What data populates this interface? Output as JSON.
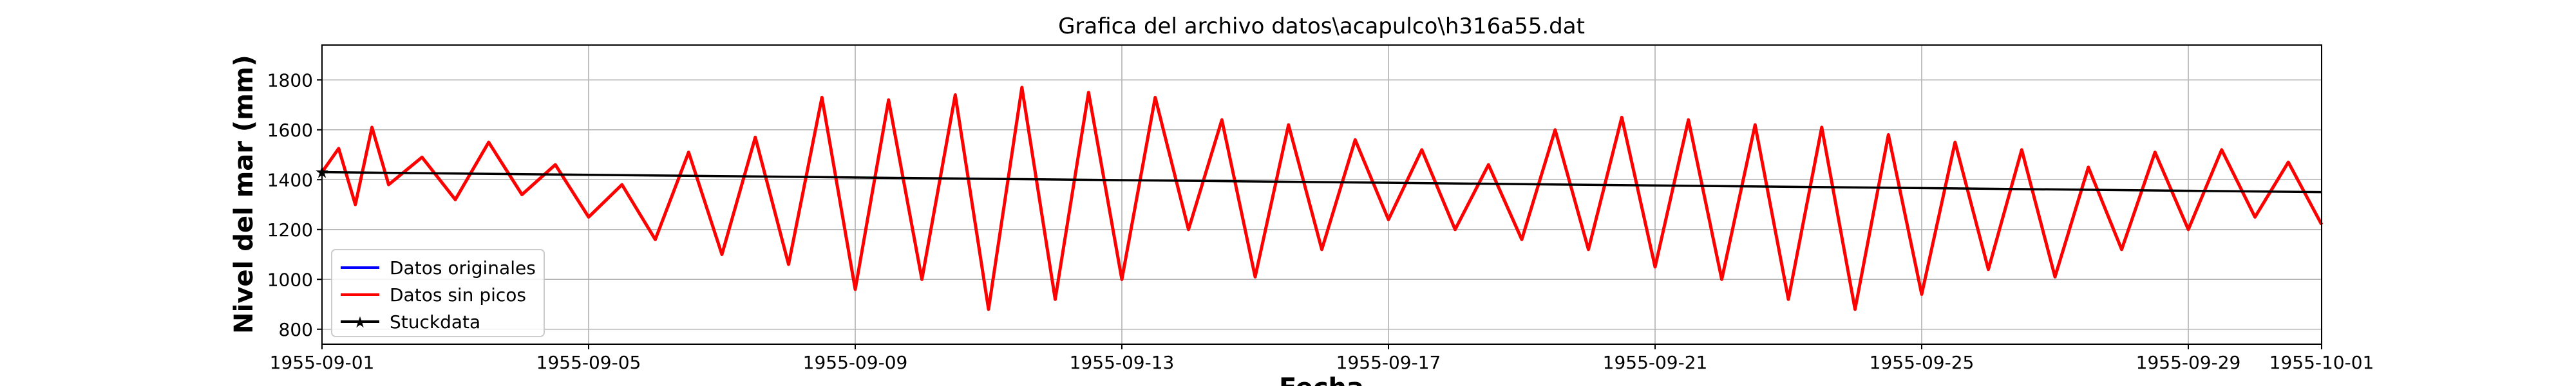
{
  "chart_data": {
    "type": "line",
    "title": "Grafica del archivo datos\\acapulco\\h316a55.dat",
    "xlabel": "Fecha",
    "ylabel": "Nivel del mar (mm)",
    "xlim": [
      "1955-09-01",
      "1955-10-01"
    ],
    "ylim": [
      740,
      1940
    ],
    "grid": true,
    "legend_position": "lower-left",
    "x_ticks": [
      "1955-09-01",
      "1955-09-05",
      "1955-09-09",
      "1955-09-13",
      "1955-09-17",
      "1955-09-21",
      "1955-09-25",
      "1955-09-29",
      "1955-10-01"
    ],
    "y_ticks": [
      800,
      1000,
      1200,
      1400,
      1600,
      1800
    ],
    "series": [
      {
        "name": "Datos originales",
        "color": "#0000ff",
        "x": [
          "1955-09-01",
          "1955-09-01 06",
          "1955-09-01 12",
          "1955-09-01 18",
          "1955-09-02",
          "1955-09-02 12",
          "1955-09-03",
          "1955-09-03 12",
          "1955-09-04",
          "1955-09-04 12",
          "1955-09-05",
          "1955-09-05 12",
          "1955-09-06",
          "1955-09-06 12",
          "1955-09-07",
          "1955-09-07 12",
          "1955-09-08",
          "1955-09-08 12",
          "1955-09-09",
          "1955-09-09 12",
          "1955-09-10",
          "1955-09-10 12",
          "1955-09-11",
          "1955-09-11 12",
          "1955-09-12",
          "1955-09-12 12",
          "1955-09-13",
          "1955-09-13 12",
          "1955-09-14",
          "1955-09-14 12",
          "1955-09-15",
          "1955-09-15 12",
          "1955-09-16",
          "1955-09-16 12",
          "1955-09-17",
          "1955-09-17 12",
          "1955-09-18",
          "1955-09-18 12",
          "1955-09-19",
          "1955-09-19 12",
          "1955-09-20",
          "1955-09-20 12",
          "1955-09-21",
          "1955-09-21 12",
          "1955-09-22",
          "1955-09-22 12",
          "1955-09-23",
          "1955-09-23 12",
          "1955-09-24",
          "1955-09-24 12",
          "1955-09-25",
          "1955-09-25 12",
          "1955-09-26",
          "1955-09-26 12",
          "1955-09-27",
          "1955-09-27 12",
          "1955-09-28",
          "1955-09-28 12",
          "1955-09-29",
          "1955-09-29 12",
          "1955-09-30",
          "1955-09-30 12",
          "1955-10-01"
        ],
        "y": [
          1430,
          1525,
          1300,
          1610,
          1380,
          1490,
          1320,
          1550,
          1340,
          1460,
          1250,
          1380,
          1160,
          1510,
          1100,
          1570,
          1060,
          1730,
          960,
          1720,
          1000,
          1740,
          880,
          1770,
          920,
          1750,
          1000,
          1730,
          1200,
          1640,
          1010,
          1620,
          1120,
          1560,
          1240,
          1520,
          1200,
          1460,
          1160,
          1600,
          1120,
          1650,
          1050,
          1640,
          1000,
          1620,
          920,
          1610,
          880,
          1580,
          940,
          1550,
          1040,
          1520,
          1010,
          1450,
          1120,
          1510,
          1200,
          1520,
          1250,
          1470,
          1220
        ]
      },
      {
        "name": "Datos sin picos",
        "color": "#ff0000",
        "x": [
          "1955-09-01",
          "1955-09-01 06",
          "1955-09-01 12",
          "1955-09-01 18",
          "1955-09-02",
          "1955-09-02 12",
          "1955-09-03",
          "1955-09-03 12",
          "1955-09-04",
          "1955-09-04 12",
          "1955-09-05",
          "1955-09-05 12",
          "1955-09-06",
          "1955-09-06 12",
          "1955-09-07",
          "1955-09-07 12",
          "1955-09-08",
          "1955-09-08 12",
          "1955-09-09",
          "1955-09-09 12",
          "1955-09-10",
          "1955-09-10 12",
          "1955-09-11",
          "1955-09-11 12",
          "1955-09-12",
          "1955-09-12 12",
          "1955-09-13",
          "1955-09-13 12",
          "1955-09-14",
          "1955-09-14 12",
          "1955-09-15",
          "1955-09-15 12",
          "1955-09-16",
          "1955-09-16 12",
          "1955-09-17",
          "1955-09-17 12",
          "1955-09-18",
          "1955-09-18 12",
          "1955-09-19",
          "1955-09-19 12",
          "1955-09-20",
          "1955-09-20 12",
          "1955-09-21",
          "1955-09-21 12",
          "1955-09-22",
          "1955-09-22 12",
          "1955-09-23",
          "1955-09-23 12",
          "1955-09-24",
          "1955-09-24 12",
          "1955-09-25",
          "1955-09-25 12",
          "1955-09-26",
          "1955-09-26 12",
          "1955-09-27",
          "1955-09-27 12",
          "1955-09-28",
          "1955-09-28 12",
          "1955-09-29",
          "1955-09-29 12",
          "1955-09-30",
          "1955-09-30 12",
          "1955-10-01"
        ],
        "y": [
          1430,
          1525,
          1300,
          1610,
          1380,
          1490,
          1320,
          1550,
          1340,
          1460,
          1250,
          1380,
          1160,
          1510,
          1100,
          1570,
          1060,
          1730,
          960,
          1720,
          1000,
          1740,
          880,
          1770,
          920,
          1750,
          1000,
          1730,
          1200,
          1640,
          1010,
          1620,
          1120,
          1560,
          1240,
          1520,
          1200,
          1460,
          1160,
          1600,
          1120,
          1650,
          1050,
          1640,
          1000,
          1620,
          920,
          1610,
          880,
          1580,
          940,
          1550,
          1040,
          1520,
          1010,
          1450,
          1120,
          1510,
          1200,
          1520,
          1250,
          1470,
          1220
        ]
      },
      {
        "name": "Stuckdata",
        "color": "#000000",
        "marker": "star",
        "x": [
          "1955-09-01",
          "1955-10-01"
        ],
        "y": [
          1430,
          1350
        ]
      }
    ]
  }
}
